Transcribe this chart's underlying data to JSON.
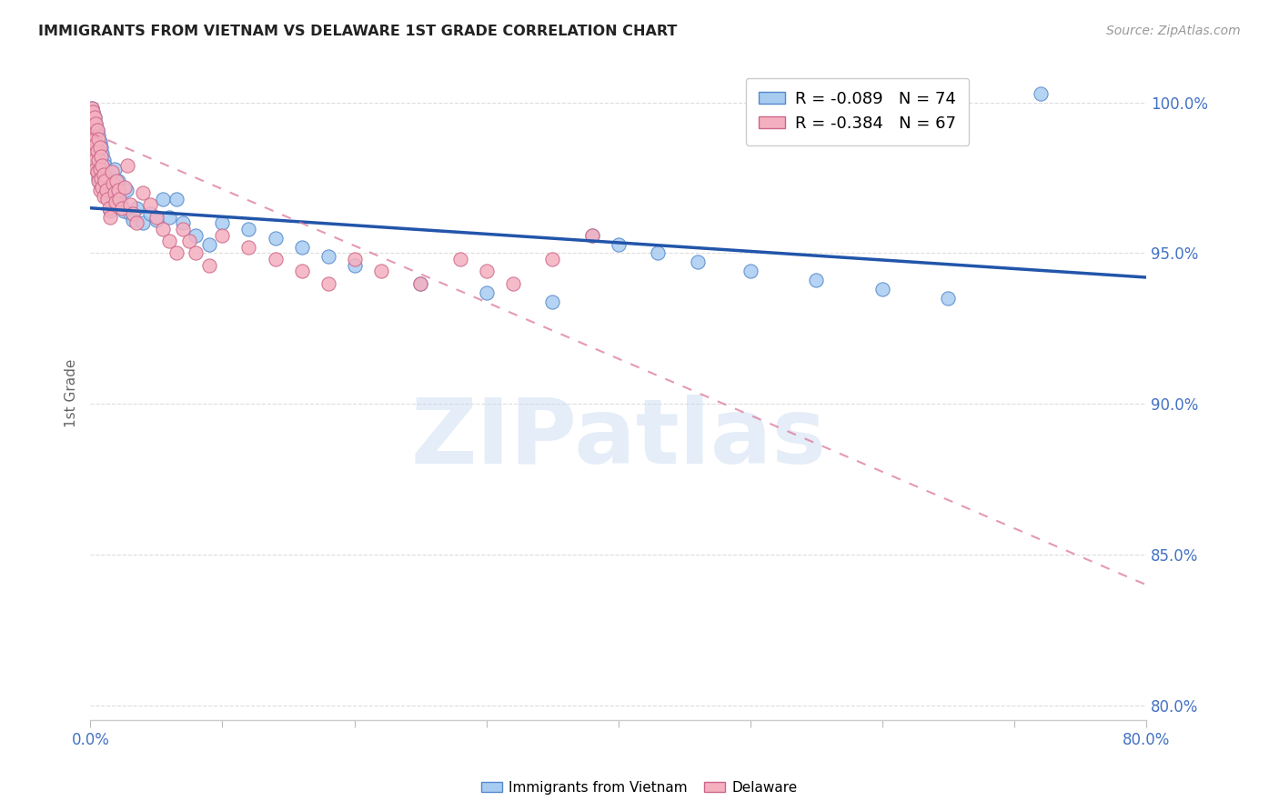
{
  "title": "IMMIGRANTS FROM VIETNAM VS DELAWARE 1ST GRADE CORRELATION CHART",
  "source": "Source: ZipAtlas.com",
  "ylabel": "1st Grade",
  "xmin": 0.0,
  "xmax": 0.8,
  "ymin": 0.795,
  "ymax": 1.012,
  "yticks": [
    0.8,
    0.85,
    0.9,
    0.95,
    1.0
  ],
  "ytick_labels": [
    "80.0%",
    "85.0%",
    "90.0%",
    "95.0%",
    "100.0%"
  ],
  "xticks": [
    0.0,
    0.1,
    0.2,
    0.3,
    0.4,
    0.5,
    0.6,
    0.7,
    0.8
  ],
  "xtick_labels": [
    "0.0%",
    "",
    "",
    "",
    "",
    "",
    "",
    "",
    "80.0%"
  ],
  "blue_R": -0.089,
  "blue_N": 74,
  "pink_R": -0.384,
  "pink_N": 67,
  "blue_color": "#A8CCF0",
  "pink_color": "#F5B0C0",
  "blue_edge_color": "#5588CC",
  "pink_edge_color": "#CC6688",
  "blue_line_color": "#2255AA",
  "pink_line_color": "#DD7799",
  "watermark": "ZIPatlas",
  "legend_label_blue": "Immigrants from Vietnam",
  "legend_label_pink": "Delaware",
  "blue_line_x0": 0.0,
  "blue_line_x1": 0.8,
  "blue_line_y0": 0.965,
  "blue_line_y1": 0.942,
  "pink_line_x0": 0.0,
  "pink_line_x1": 0.8,
  "pink_line_y0": 0.99,
  "pink_line_y1": 0.84,
  "blue_scatter_x": [
    0.001,
    0.001,
    0.002,
    0.002,
    0.002,
    0.003,
    0.003,
    0.003,
    0.004,
    0.004,
    0.004,
    0.005,
    0.005,
    0.005,
    0.006,
    0.006,
    0.006,
    0.007,
    0.007,
    0.007,
    0.008,
    0.008,
    0.009,
    0.009,
    0.01,
    0.01,
    0.011,
    0.011,
    0.012,
    0.012,
    0.013,
    0.014,
    0.015,
    0.015,
    0.016,
    0.017,
    0.018,
    0.019,
    0.02,
    0.021,
    0.022,
    0.023,
    0.025,
    0.027,
    0.03,
    0.032,
    0.035,
    0.04,
    0.045,
    0.05,
    0.055,
    0.06,
    0.065,
    0.07,
    0.08,
    0.09,
    0.1,
    0.12,
    0.14,
    0.16,
    0.18,
    0.2,
    0.25,
    0.3,
    0.35,
    0.38,
    0.4,
    0.43,
    0.46,
    0.5,
    0.55,
    0.6,
    0.65,
    0.72
  ],
  "blue_scatter_y": [
    0.998,
    0.993,
    0.997,
    0.99,
    0.984,
    0.995,
    0.988,
    0.981,
    0.993,
    0.986,
    0.979,
    0.991,
    0.984,
    0.977,
    0.989,
    0.982,
    0.975,
    0.987,
    0.98,
    0.973,
    0.985,
    0.978,
    0.983,
    0.976,
    0.981,
    0.974,
    0.979,
    0.971,
    0.977,
    0.969,
    0.975,
    0.973,
    0.971,
    0.964,
    0.969,
    0.967,
    0.978,
    0.972,
    0.97,
    0.974,
    0.968,
    0.966,
    0.964,
    0.971,
    0.963,
    0.961,
    0.965,
    0.96,
    0.963,
    0.961,
    0.968,
    0.962,
    0.968,
    0.96,
    0.956,
    0.953,
    0.96,
    0.958,
    0.955,
    0.952,
    0.949,
    0.946,
    0.94,
    0.937,
    0.934,
    0.956,
    0.953,
    0.95,
    0.947,
    0.944,
    0.941,
    0.938,
    0.935,
    1.003
  ],
  "pink_scatter_x": [
    0.001,
    0.001,
    0.002,
    0.002,
    0.002,
    0.003,
    0.003,
    0.003,
    0.004,
    0.004,
    0.004,
    0.005,
    0.005,
    0.005,
    0.006,
    0.006,
    0.006,
    0.007,
    0.007,
    0.007,
    0.008,
    0.008,
    0.009,
    0.009,
    0.01,
    0.01,
    0.011,
    0.012,
    0.013,
    0.014,
    0.015,
    0.016,
    0.017,
    0.018,
    0.019,
    0.02,
    0.021,
    0.022,
    0.024,
    0.026,
    0.028,
    0.03,
    0.032,
    0.035,
    0.04,
    0.045,
    0.05,
    0.055,
    0.06,
    0.065,
    0.07,
    0.075,
    0.08,
    0.09,
    0.1,
    0.12,
    0.14,
    0.16,
    0.18,
    0.2,
    0.22,
    0.25,
    0.28,
    0.3,
    0.32,
    0.35,
    0.38
  ],
  "pink_scatter_y": [
    0.998,
    0.993,
    0.997,
    0.99,
    0.983,
    0.995,
    0.988,
    0.981,
    0.993,
    0.986,
    0.978,
    0.991,
    0.984,
    0.977,
    0.988,
    0.981,
    0.974,
    0.985,
    0.978,
    0.971,
    0.982,
    0.975,
    0.979,
    0.972,
    0.976,
    0.969,
    0.974,
    0.971,
    0.968,
    0.965,
    0.962,
    0.977,
    0.973,
    0.97,
    0.967,
    0.974,
    0.971,
    0.968,
    0.965,
    0.972,
    0.979,
    0.966,
    0.963,
    0.96,
    0.97,
    0.966,
    0.962,
    0.958,
    0.954,
    0.95,
    0.958,
    0.954,
    0.95,
    0.946,
    0.956,
    0.952,
    0.948,
    0.944,
    0.94,
    0.948,
    0.944,
    0.94,
    0.948,
    0.944,
    0.94,
    0.948,
    0.956
  ]
}
